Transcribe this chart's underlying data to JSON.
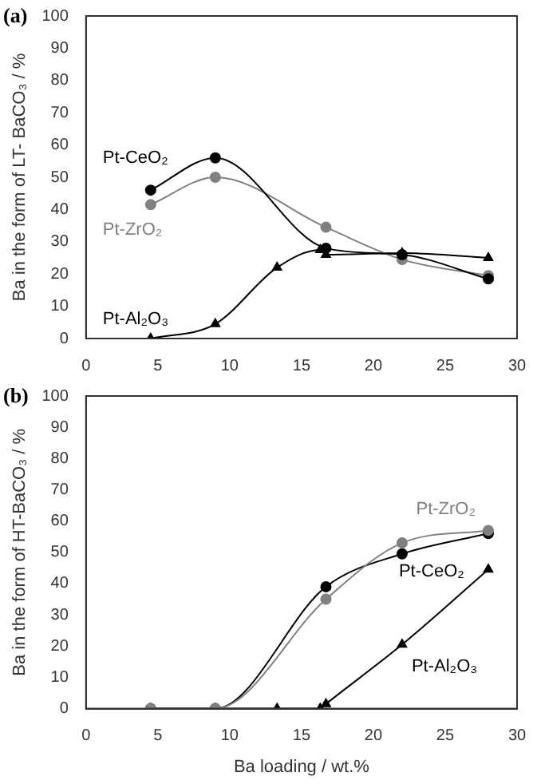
{
  "chart_data": [
    {
      "type": "line",
      "title": "(a)",
      "ylabel": "Ba in the form of LT- BaCO₃ / %",
      "xlim": [
        0,
        30
      ],
      "xticks": [
        0,
        5,
        10,
        15,
        20,
        25,
        30
      ],
      "ylim": [
        0,
        100
      ],
      "yticks": [
        0,
        10,
        20,
        30,
        40,
        50,
        60,
        70,
        80,
        90,
        100
      ],
      "grid": false,
      "legend": false,
      "series": [
        {
          "name": "Pt-CeO₂",
          "color": "#000000",
          "marker": "circle",
          "x": [
            4.5,
            9,
            16.7,
            22,
            28
          ],
          "values": [
            46,
            56,
            28,
            26,
            18.5
          ]
        },
        {
          "name": "Pt-ZrO₂",
          "color": "#808080",
          "marker": "circle",
          "x": [
            4.5,
            9,
            16.7,
            22,
            28
          ],
          "values": [
            41.5,
            50,
            34.5,
            24.5,
            19.5
          ]
        },
        {
          "name": "Pt-Al₂O₃",
          "color": "#000000",
          "marker": "triangle",
          "x": [
            4.5,
            9,
            13.3,
            16.3,
            16.7,
            22,
            28
          ],
          "values": [
            0,
            4.5,
            22,
            27.5,
            26,
            26.5,
            25
          ]
        }
      ]
    },
    {
      "type": "line",
      "title": "(b)",
      "xlabel": "Ba loading / wt.%",
      "ylabel": "Ba in the form of HT-BaCO₃ / %",
      "xlim": [
        0,
        30
      ],
      "xticks": [
        0,
        5,
        10,
        15,
        20,
        25,
        30
      ],
      "ylim": [
        0,
        100
      ],
      "yticks": [
        0,
        10,
        20,
        30,
        40,
        50,
        60,
        70,
        80,
        90,
        100
      ],
      "grid": false,
      "legend": false,
      "series": [
        {
          "name": "Pt-ZrO₂",
          "color": "#808080",
          "marker": "circle",
          "x": [
            4.5,
            9,
            16.7,
            22,
            28
          ],
          "values": [
            0,
            0,
            35,
            53,
            57
          ]
        },
        {
          "name": "Pt-CeO₂",
          "color": "#000000",
          "marker": "circle",
          "x": [
            4.5,
            9,
            16.7,
            22,
            28
          ],
          "values": [
            0,
            0,
            39,
            49.5,
            56
          ]
        },
        {
          "name": "Pt-Al₂O₃",
          "color": "#000000",
          "marker": "triangle",
          "x": [
            4.5,
            9,
            13.3,
            16.3,
            16.7,
            22,
            28
          ],
          "values": [
            0,
            0,
            0,
            0,
            1.5,
            20.5,
            44.5
          ]
        }
      ]
    }
  ]
}
